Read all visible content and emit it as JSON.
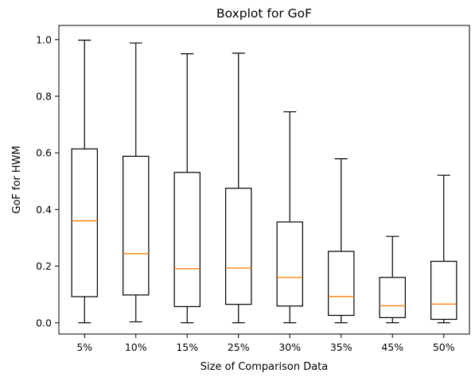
{
  "chart_data": {
    "type": "boxplot",
    "title": "Boxplot for GoF",
    "xlabel": "Size of Comparison Data",
    "ylabel": "GoF for HWM",
    "ylim": [
      -0.04,
      1.05
    ],
    "yticks": [
      0.0,
      0.2,
      0.4,
      0.6,
      0.8,
      1.0
    ],
    "ytick_labels": [
      "0.0",
      "0.2",
      "0.4",
      "0.6",
      "0.8",
      "1.0"
    ],
    "categories": [
      "5%",
      "10%",
      "15%",
      "25%",
      "30%",
      "35%",
      "45%",
      "50%"
    ],
    "boxes": [
      {
        "category": "5%",
        "whisker_low": 0.0,
        "q1": 0.092,
        "median": 0.36,
        "q3": 0.614,
        "whisker_high": 0.998
      },
      {
        "category": "10%",
        "whisker_low": 0.003,
        "q1": 0.098,
        "median": 0.244,
        "q3": 0.588,
        "whisker_high": 0.988
      },
      {
        "category": "15%",
        "whisker_low": 0.0,
        "q1": 0.057,
        "median": 0.191,
        "q3": 0.531,
        "whisker_high": 0.95
      },
      {
        "category": "25%",
        "whisker_low": 0.0,
        "q1": 0.065,
        "median": 0.193,
        "q3": 0.475,
        "whisker_high": 0.952
      },
      {
        "category": "30%",
        "whisker_low": 0.0,
        "q1": 0.059,
        "median": 0.16,
        "q3": 0.356,
        "whisker_high": 0.745
      },
      {
        "category": "35%",
        "whisker_low": 0.0,
        "q1": 0.026,
        "median": 0.093,
        "q3": 0.252,
        "whisker_high": 0.579
      },
      {
        "category": "45%",
        "whisker_low": 0.0,
        "q1": 0.018,
        "median": 0.06,
        "q3": 0.16,
        "whisker_high": 0.305
      },
      {
        "category": "50%",
        "whisker_low": 0.0,
        "q1": 0.012,
        "median": 0.066,
        "q3": 0.217,
        "whisker_high": 0.521
      }
    ],
    "grid": false,
    "colors": {
      "box": "#000000",
      "median": "#ff7f0e",
      "whisker": "#000000",
      "axis": "#000000"
    }
  }
}
